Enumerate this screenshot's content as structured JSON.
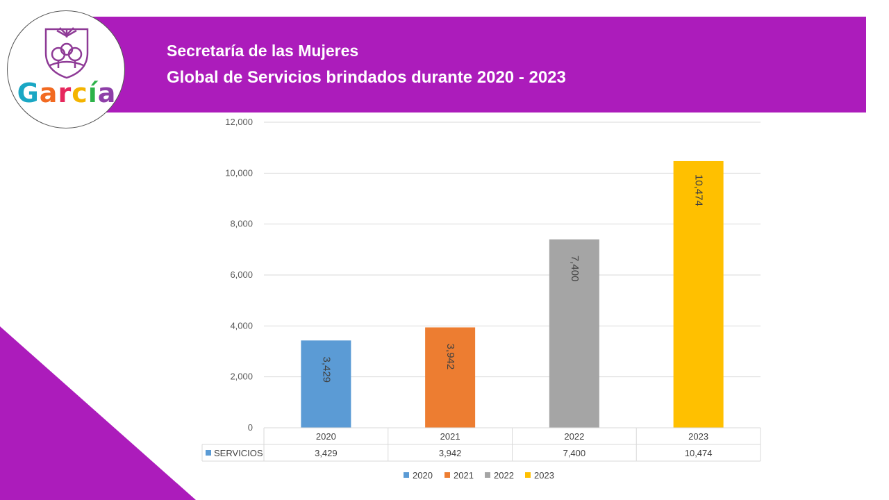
{
  "header": {
    "title_line1": "Secretaría de las Mujeres",
    "title_line2": "Global de Servicios brindados durante 2020 - 2023"
  },
  "logo": {
    "text": "García",
    "letter_colors": [
      "#1aa7c4",
      "#f26a21",
      "#e6275d",
      "#f4b400",
      "#2db34a",
      "#8e3fa8"
    ]
  },
  "colors": {
    "banner": "#ac1cbb",
    "corner": "#ac1cbb"
  },
  "chart_data": {
    "type": "bar",
    "title": "",
    "categories": [
      "2020",
      "2021",
      "2022",
      "2023"
    ],
    "values": [
      3429,
      3942,
      7400,
      10474
    ],
    "value_labels": [
      "3,429",
      "3,942",
      "7,400",
      "10,474"
    ],
    "bar_colors": [
      "#5b9bd5",
      "#ed7d31",
      "#a5a5a5",
      "#ffc000"
    ],
    "ylim": [
      0,
      12000
    ],
    "yticks": [
      0,
      2000,
      4000,
      6000,
      8000,
      10000,
      12000
    ],
    "ytick_labels": [
      "0",
      "2,000",
      "4,000",
      "6,000",
      "8,000",
      "10,000",
      "12,000"
    ],
    "grid": true,
    "data_table": {
      "row_label": "SERVICIOS",
      "row_label_color": "#5b9bd5",
      "values": [
        "3,429",
        "3,942",
        "7,400",
        "10,474"
      ]
    },
    "legend": {
      "position": "bottom",
      "entries": [
        {
          "label": "2020",
          "color": "#5b9bd5"
        },
        {
          "label": "2021",
          "color": "#ed7d31"
        },
        {
          "label": "2022",
          "color": "#a5a5a5"
        },
        {
          "label": "2023",
          "color": "#ffc000"
        }
      ]
    }
  }
}
